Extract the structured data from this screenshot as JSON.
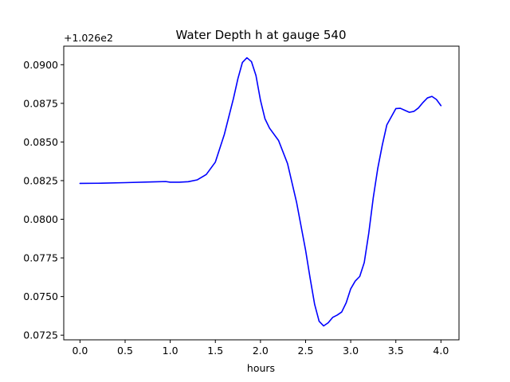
{
  "chart_data": {
    "type": "line",
    "title": "Water Depth h at gauge 540",
    "xlabel": "hours",
    "ylabel": "",
    "offset_label": "+1.026e2",
    "xlim": [
      -0.18,
      4.2
    ],
    "ylim": [
      0.0722,
      0.0912
    ],
    "xticks": [
      0.0,
      0.5,
      1.0,
      1.5,
      2.0,
      2.5,
      3.0,
      3.5,
      4.0
    ],
    "xtick_labels": [
      "0.0",
      "0.5",
      "1.0",
      "1.5",
      "2.0",
      "2.5",
      "3.0",
      "3.5",
      "4.0"
    ],
    "yticks": [
      0.0725,
      0.075,
      0.0775,
      0.08,
      0.0825,
      0.085,
      0.0875,
      0.09
    ],
    "ytick_labels": [
      "0.0725",
      "0.0750",
      "0.0775",
      "0.0800",
      "0.0825",
      "0.0850",
      "0.0875",
      "0.0900"
    ],
    "grid": false,
    "series": [
      {
        "color": "#0000ff",
        "x": [
          0.0,
          0.2,
          0.5,
          0.8,
          0.95,
          1.0,
          1.1,
          1.2,
          1.3,
          1.4,
          1.5,
          1.6,
          1.7,
          1.75,
          1.8,
          1.85,
          1.9,
          1.95,
          2.0,
          2.05,
          2.1,
          2.2,
          2.3,
          2.4,
          2.5,
          2.55,
          2.6,
          2.65,
          2.7,
          2.75,
          2.8,
          2.85,
          2.9,
          2.95,
          3.0,
          3.05,
          3.1,
          3.15,
          3.2,
          3.25,
          3.3,
          3.35,
          3.4,
          3.5,
          3.55,
          3.6,
          3.65,
          3.7,
          3.75,
          3.8,
          3.85,
          3.9,
          3.95,
          4.0
        ],
        "y": [
          0.08232,
          0.08233,
          0.08237,
          0.08242,
          0.08244,
          0.0824,
          0.0824,
          0.08243,
          0.08255,
          0.0829,
          0.0837,
          0.0855,
          0.0878,
          0.0891,
          0.09015,
          0.09045,
          0.0902,
          0.0893,
          0.0877,
          0.0865,
          0.0859,
          0.0851,
          0.0836,
          0.0811,
          0.078,
          0.0762,
          0.0745,
          0.0734,
          0.0731,
          0.0733,
          0.07365,
          0.0738,
          0.074,
          0.0746,
          0.0755,
          0.076,
          0.0763,
          0.0772,
          0.0791,
          0.0814,
          0.0833,
          0.0848,
          0.0861,
          0.08716,
          0.08718,
          0.08705,
          0.08692,
          0.08698,
          0.0872,
          0.08755,
          0.08785,
          0.08795,
          0.08775,
          0.08735
        ]
      }
    ]
  }
}
